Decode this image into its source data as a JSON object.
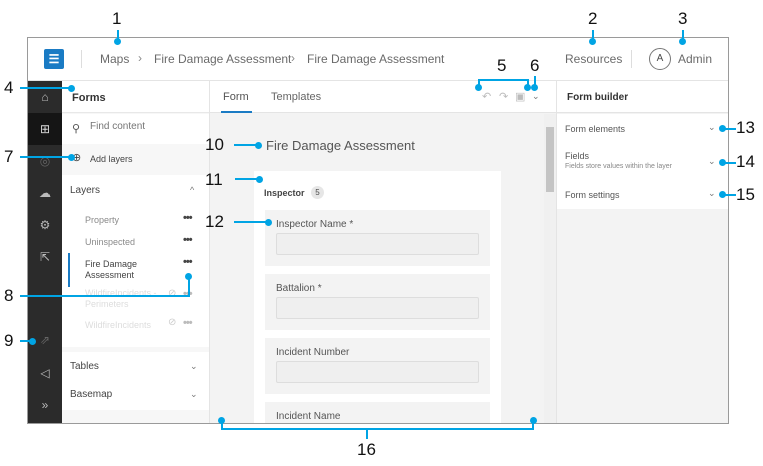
{
  "header": {
    "logo_icon": "survey123-logo",
    "breadcrumbs": [
      "Maps",
      "Fire Damage Assessment",
      "Fire Damage Assessment"
    ],
    "resources": "Resources",
    "avatar_initial": "A",
    "user": "Admin"
  },
  "nav_icons": [
    "home-icon",
    "form-tree-icon",
    "target-icon",
    "cloud-icon",
    "gear-icon",
    "share-icon",
    "open-external-icon",
    "megaphone-icon",
    "expand-icon"
  ],
  "forms_panel": {
    "title": "Forms",
    "search_placeholder": "Find content",
    "add_layers": "Add layers",
    "layers_header": "Layers",
    "layers": [
      {
        "name": "Property",
        "disabled": false
      },
      {
        "name": "Uninspected",
        "disabled": false
      },
      {
        "name": "Fire Damage Assessment",
        "disabled": false,
        "selected": true
      },
      {
        "name": "WildfireIncidents - Perimeters",
        "disabled": true
      },
      {
        "name": "WildfireIncidents",
        "disabled": true
      }
    ],
    "tables": "Tables",
    "basemap": "Basemap"
  },
  "center": {
    "tabs": [
      "Form",
      "Templates"
    ],
    "active_tab": "Form",
    "form_title": "Fire Damage Assessment",
    "group": {
      "name": "Inspector",
      "count": "5"
    },
    "fields": [
      "Inspector Name *",
      "Battalion *",
      "Incident Number",
      "Incident Name"
    ]
  },
  "right_panel": {
    "title": "Form builder",
    "sections": [
      {
        "title": "Form elements"
      },
      {
        "title": "Fields",
        "subtitle": "Fields store values within the layer"
      },
      {
        "title": "Form settings"
      }
    ]
  },
  "callouts": [
    "1",
    "2",
    "3",
    "4",
    "5",
    "6",
    "7",
    "8",
    "9",
    "10",
    "11",
    "12",
    "13",
    "14",
    "15",
    "16"
  ],
  "colors": {
    "accent": "#1a7bc4",
    "callout": "#00a4e4",
    "nav_bg": "#2b2b2b"
  }
}
